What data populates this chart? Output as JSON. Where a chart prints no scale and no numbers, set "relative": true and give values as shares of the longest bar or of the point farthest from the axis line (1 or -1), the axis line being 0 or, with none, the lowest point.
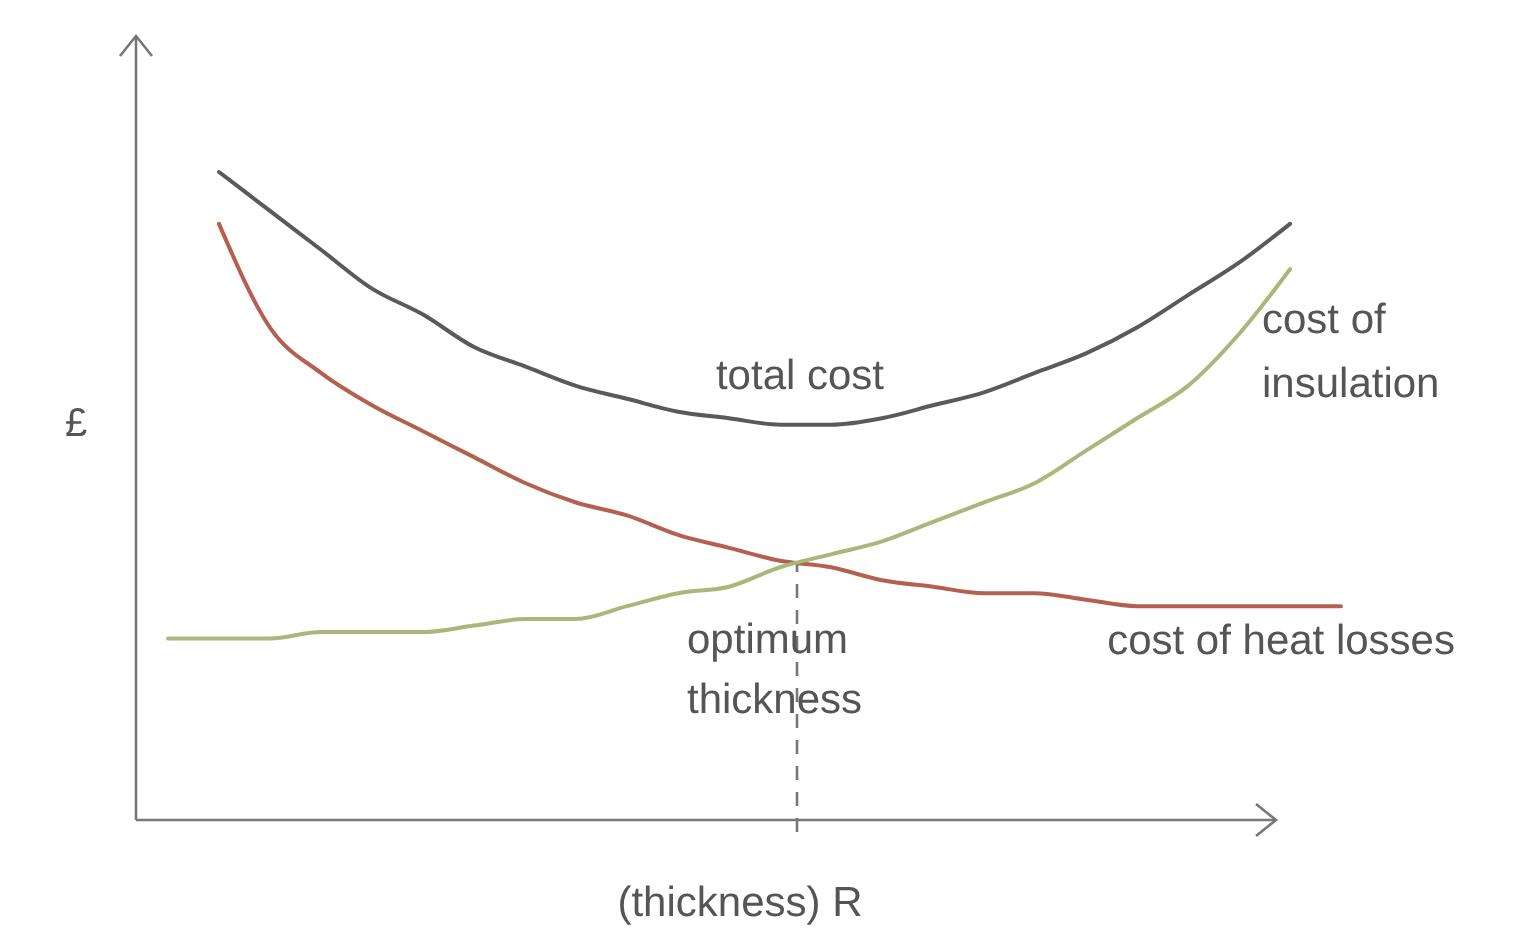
{
  "chart_data": {
    "type": "line",
    "relative": true,
    "xlabel": "(thickness) R",
    "ylabel": "£",
    "categories": [
      null,
      null,
      null,
      null,
      null,
      null,
      null,
      null,
      null,
      null,
      null,
      null,
      null,
      null,
      null,
      null,
      null,
      null,
      null,
      null,
      null,
      null,
      null,
      null
    ],
    "series": [
      {
        "name": "total cost",
        "color": "#5a5a5a",
        "values": [
          null,
          1.0,
          0.94,
          0.88,
          0.82,
          0.78,
          0.73,
          0.7,
          0.67,
          0.65,
          0.63,
          0.62,
          0.61,
          0.61,
          0.62,
          0.64,
          0.66,
          0.69,
          0.72,
          0.76,
          0.81,
          0.86,
          0.92,
          null
        ]
      },
      {
        "name": "cost of heat losses",
        "color": "#b5604f",
        "values": [
          null,
          0.92,
          0.76,
          0.69,
          0.64,
          0.6,
          0.56,
          0.52,
          0.49,
          0.47,
          0.44,
          0.42,
          0.4,
          0.39,
          0.37,
          0.36,
          0.35,
          0.35,
          0.34,
          0.33,
          0.33,
          0.33,
          0.33,
          0.33
        ]
      },
      {
        "name": "cost of insulation",
        "color": "#a9b87a",
        "values": [
          0.28,
          0.28,
          0.28,
          0.29,
          0.29,
          0.29,
          0.3,
          0.31,
          0.31,
          0.33,
          0.35,
          0.36,
          0.39,
          0.41,
          0.43,
          0.46,
          0.49,
          0.52,
          0.57,
          0.62,
          0.67,
          0.75,
          0.85,
          null
        ]
      }
    ],
    "annotations": [
      "optimum thickness"
    ],
    "marker": "none",
    "line_style": "solid"
  }
}
